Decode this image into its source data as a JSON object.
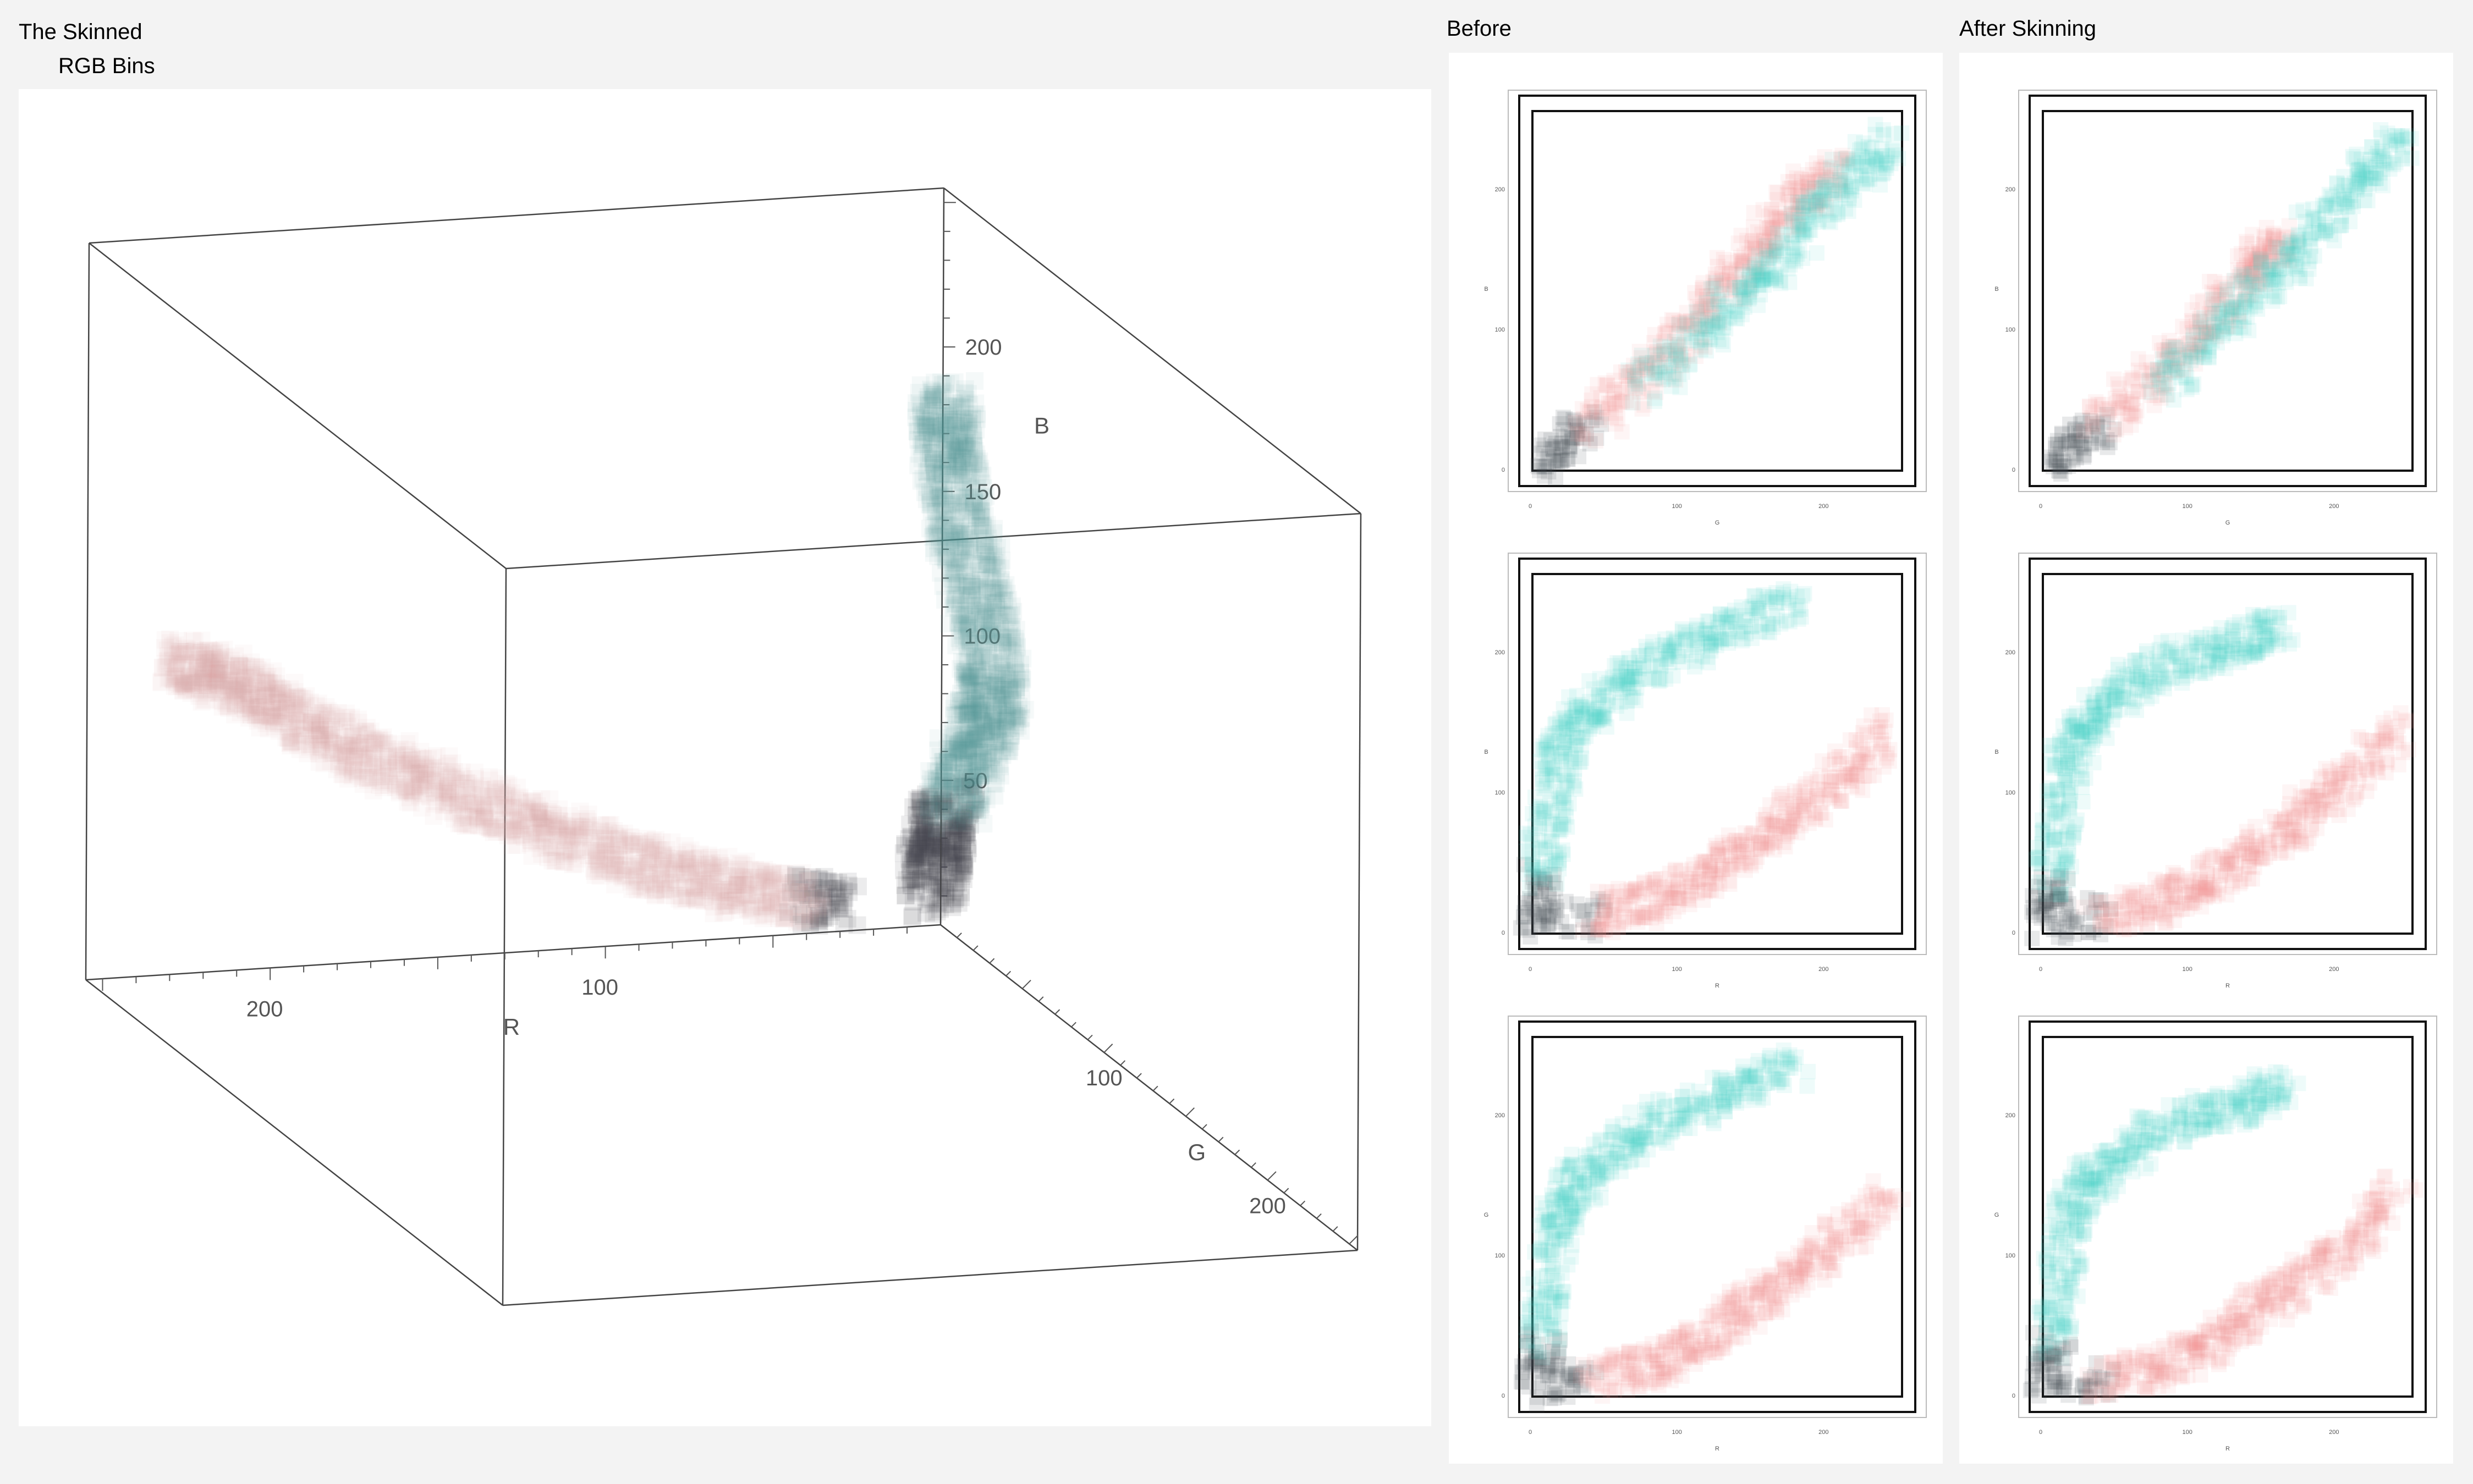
{
  "header": {
    "title": "The Skinned",
    "subtitle": "RGB Bins",
    "before_label": "Before",
    "after_label": "After Skinning"
  },
  "colors": {
    "background": "#f3f3f3",
    "panel": "#ffffff",
    "pink_cluster": "#d8a4ac",
    "teal_cluster": "#4e9a98",
    "cyan_density": "#3fd4c6",
    "red_density": "#f08c8c",
    "dark_core": "#404850"
  },
  "chart_data": [
    {
      "id": "rgb-3d-scatter",
      "type": "scatter",
      "projection": "3d",
      "axes": {
        "x": {
          "label": "R",
          "range": [
            0,
            255
          ],
          "ticks": [
            100,
            200
          ]
        },
        "y": {
          "label": "G",
          "range": [
            0,
            255
          ],
          "ticks": [
            100,
            200
          ]
        },
        "z": {
          "label": "B",
          "range": [
            0,
            255
          ],
          "ticks": [
            50,
            100,
            150,
            200
          ]
        }
      },
      "series": [
        {
          "color": "pink",
          "points": [
            [
              30,
              0,
              10
            ],
            [
              60,
              5,
              18
            ],
            [
              90,
              8,
              30
            ],
            [
              120,
              12,
              45
            ],
            [
              150,
              15,
              62
            ],
            [
              180,
              18,
              80
            ],
            [
              205,
              20,
              98
            ],
            [
              225,
              22,
              112
            ],
            [
              240,
              24,
              120
            ]
          ]
        },
        {
          "color": "teal",
          "points": [
            [
              10,
              15,
              20
            ],
            [
              14,
              28,
              45
            ],
            [
              16,
              45,
              70
            ],
            [
              20,
              65,
              98
            ],
            [
              24,
              82,
              118
            ],
            [
              22,
              70,
              140
            ],
            [
              18,
              48,
              158
            ],
            [
              12,
              28,
              178
            ],
            [
              8,
              18,
              190
            ]
          ]
        }
      ]
    },
    {
      "id": "before-plot-1",
      "type": "heatmap",
      "xlabel": "G",
      "ylabel": "B",
      "xticks": [
        0,
        100,
        200
      ],
      "yticks": [
        0,
        100,
        200
      ],
      "xlim": [
        0,
        255
      ],
      "ylim": [
        0,
        255
      ],
      "series": [
        {
          "color": "red",
          "points": [
            [
              10,
              5
            ],
            [
              50,
              40
            ],
            [
              100,
              90
            ],
            [
              140,
              140
            ],
            [
              175,
              185
            ],
            [
              210,
              215
            ]
          ]
        },
        {
          "color": "cyan",
          "points": [
            [
              80,
              60
            ],
            [
              130,
              110
            ],
            [
              170,
              150
            ],
            [
              210,
              200
            ],
            [
              245,
              235
            ]
          ]
        }
      ]
    },
    {
      "id": "before-plot-2",
      "type": "heatmap",
      "xlabel": "R",
      "ylabel": "B",
      "xticks": [
        0,
        100,
        200
      ],
      "yticks": [
        0,
        100,
        200
      ],
      "xlim": [
        0,
        255
      ],
      "ylim": [
        0,
        255
      ],
      "series": [
        {
          "color": "red",
          "points": [
            [
              30,
              10
            ],
            [
              80,
              20
            ],
            [
              120,
              40
            ],
            [
              160,
              70
            ],
            [
              200,
              100
            ],
            [
              245,
              145
            ]
          ]
        },
        {
          "color": "cyan",
          "points": [
            [
              5,
              5
            ],
            [
              10,
              60
            ],
            [
              20,
              130
            ],
            [
              40,
              160
            ],
            [
              80,
              190
            ],
            [
              130,
              215
            ],
            [
              180,
              235
            ]
          ]
        }
      ]
    },
    {
      "id": "before-plot-3",
      "type": "heatmap",
      "xlabel": "R",
      "ylabel": "G",
      "xticks": [
        0,
        100,
        200
      ],
      "yticks": [
        0,
        100,
        200
      ],
      "xlim": [
        0,
        255
      ],
      "ylim": [
        0,
        255
      ],
      "series": [
        {
          "color": "red",
          "points": [
            [
              30,
              10
            ],
            [
              80,
              20
            ],
            [
              120,
              40
            ],
            [
              160,
              70
            ],
            [
              200,
              100
            ],
            [
              245,
              145
            ]
          ]
        },
        {
          "color": "cyan",
          "points": [
            [
              5,
              5
            ],
            [
              10,
              60
            ],
            [
              20,
              130
            ],
            [
              40,
              160
            ],
            [
              80,
              190
            ],
            [
              130,
              215
            ],
            [
              180,
              235
            ]
          ]
        }
      ]
    },
    {
      "id": "after-plot-1",
      "type": "heatmap",
      "xlabel": "G",
      "ylabel": "B",
      "xticks": [
        0,
        100,
        200
      ],
      "yticks": [
        0,
        100,
        200
      ],
      "xlim": [
        0,
        255
      ],
      "ylim": [
        0,
        255
      ],
      "series": [
        {
          "color": "red",
          "points": [
            [
              10,
              5
            ],
            [
              50,
              40
            ],
            [
              100,
              90
            ],
            [
              140,
              140
            ],
            [
              165,
              170
            ]
          ]
        },
        {
          "color": "cyan",
          "points": [
            [
              80,
              60
            ],
            [
              130,
              110
            ],
            [
              170,
              150
            ],
            [
              210,
              200
            ],
            [
              245,
              235
            ]
          ]
        }
      ]
    },
    {
      "id": "after-plot-2",
      "type": "heatmap",
      "xlabel": "R",
      "ylabel": "B",
      "xticks": [
        0,
        100,
        200
      ],
      "yticks": [
        0,
        100,
        200
      ],
      "xlim": [
        0,
        255
      ],
      "ylim": [
        0,
        255
      ],
      "series": [
        {
          "color": "red",
          "points": [
            [
              30,
              10
            ],
            [
              80,
              20
            ],
            [
              120,
              40
            ],
            [
              160,
              70
            ],
            [
              200,
              100
            ],
            [
              245,
              145
            ]
          ]
        },
        {
          "color": "cyan",
          "points": [
            [
              5,
              5
            ],
            [
              10,
              60
            ],
            [
              20,
              130
            ],
            [
              40,
              160
            ],
            [
              80,
              190
            ],
            [
              130,
              205
            ],
            [
              165,
              220
            ]
          ]
        }
      ]
    },
    {
      "id": "after-plot-3",
      "type": "heatmap",
      "xlabel": "R",
      "ylabel": "G",
      "xticks": [
        0,
        100,
        200
      ],
      "yticks": [
        0,
        100,
        200
      ],
      "xlim": [
        0,
        255
      ],
      "ylim": [
        0,
        255
      ],
      "series": [
        {
          "color": "red",
          "points": [
            [
              30,
              10
            ],
            [
              80,
              20
            ],
            [
              120,
              40
            ],
            [
              160,
              70
            ],
            [
              200,
              100
            ],
            [
              245,
              145
            ]
          ]
        },
        {
          "color": "cyan",
          "points": [
            [
              5,
              5
            ],
            [
              10,
              60
            ],
            [
              20,
              130
            ],
            [
              40,
              160
            ],
            [
              80,
              190
            ],
            [
              130,
              205
            ],
            [
              165,
              220
            ]
          ]
        }
      ]
    }
  ]
}
